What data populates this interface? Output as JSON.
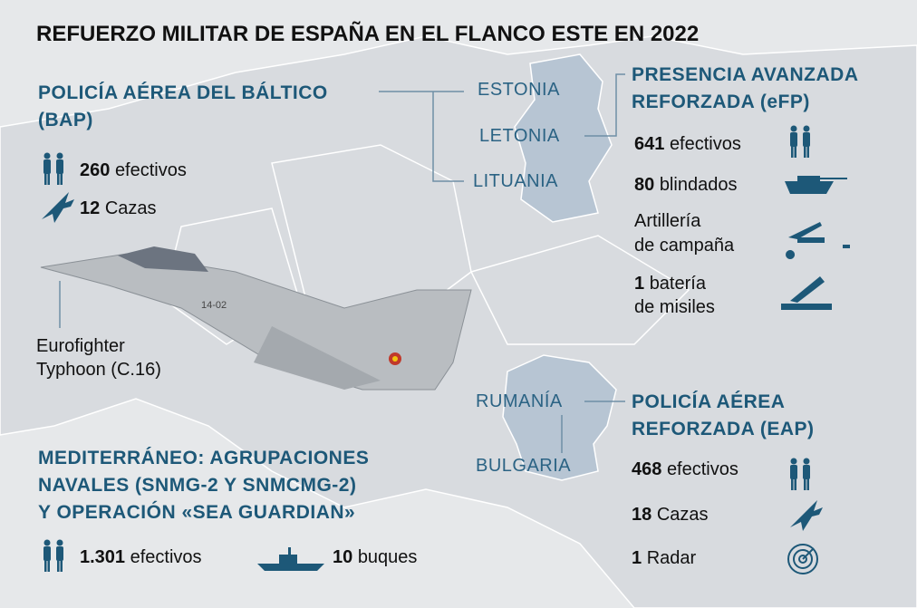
{
  "title": "REFUERZO MILITAR DE ESPAÑA EN EL FLANCO ESTE EN 2022",
  "countries": [
    "ESTONIA",
    "LETONIA",
    "LITUANIA",
    "RUMANÍA",
    "BULGARIA"
  ],
  "aircraft": {
    "label_lines": [
      "Eurofighter",
      "Typhoon (C.16)"
    ],
    "tail_number": "14-02"
  },
  "bap": {
    "heading_lines": [
      "POLICÍA AÉREA DEL BÁLTICO",
      "(BAP)"
    ],
    "items": [
      {
        "number": "260",
        "label": "efectivos"
      },
      {
        "number": "12",
        "label": "Cazas"
      }
    ]
  },
  "efp": {
    "heading_lines": [
      "PRESENCIA AVANZADA",
      "REFORZADA (eFP)"
    ],
    "items": [
      {
        "number": "641",
        "label": "efectivos"
      },
      {
        "number": "80",
        "label": "blindados"
      }
    ],
    "artillery_lines": [
      "Artillería",
      "de campaña"
    ],
    "missiles": {
      "number": "1",
      "label_lines": [
        "batería",
        "de misiles"
      ]
    }
  },
  "eap": {
    "heading_lines": [
      "POLICÍA AÉREA",
      "REFORZADA (EAP)"
    ],
    "items": [
      {
        "number": "468",
        "label": "efectivos"
      },
      {
        "number": "18",
        "label": "Cazas"
      },
      {
        "number": "1",
        "label": "Radar"
      }
    ]
  },
  "med": {
    "heading_lines": [
      "MEDITERRÁNEO: AGRUPACIONES",
      "NAVALES (SNMG-2 Y SNMCMG-2)",
      "Y OPERACIÓN «SEA GUARDIAN»"
    ],
    "items": [
      {
        "number": "1.301",
        "label": "efectivos"
      },
      {
        "number": "10",
        "label": "buques"
      }
    ]
  }
}
